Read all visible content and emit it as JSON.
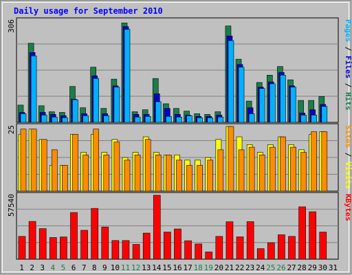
{
  "chart_data": {
    "type": "bar",
    "title": "Daily usage for September 2010",
    "categories": [
      "1",
      "2",
      "3",
      "4",
      "5",
      "6",
      "7",
      "8",
      "9",
      "10",
      "11",
      "12",
      "13",
      "14",
      "15",
      "16",
      "17",
      "18",
      "19",
      "20",
      "21",
      "22",
      "23",
      "24",
      "25",
      "26",
      "27",
      "28",
      "29",
      "30",
      "31"
    ],
    "weekend_days": [
      4,
      5,
      11,
      12,
      18,
      19,
      25,
      26
    ],
    "colors": {
      "frame": "#0000ff",
      "title": "#0000ff",
      "weekday_label": "#000000",
      "weekend_label": "#1a7e4a",
      "pages": "#1a7e4a",
      "files": "#0000cc",
      "hits": "#00b0ff",
      "visits": "#ffff00",
      "sites": "#ff8c00",
      "kbytes": "#ff0000"
    },
    "panels": [
      {
        "id": "hits",
        "ymax_label": "306",
        "ylim": [
          0,
          306
        ],
        "legend": [
          {
            "text": "Pages",
            "color": "#00b0ff"
          },
          {
            "text": " / ",
            "color": "#000000"
          },
          {
            "text": "Files",
            "color": "#0000cc"
          },
          {
            "text": " / ",
            "color": "#000000"
          },
          {
            "text": "Hits",
            "color": "#1a7e4a"
          }
        ],
        "series": [
          {
            "name": "Hits",
            "color": "#1a7e4a",
            "values": [
              52,
              238,
              50,
              32,
              30,
              108,
              44,
              166,
              42,
              130,
              299,
              32,
              38,
              132,
              56,
              42,
              34,
              26,
              24,
              32,
              290,
              190,
              64,
              120,
              142,
              168,
              128,
              66,
              66,
              78,
              0
            ]
          },
          {
            "name": "Files",
            "color": "#0000cc",
            "values": [
              30,
              210,
              30,
              24,
              20,
              70,
              26,
              140,
              26,
              110,
              288,
              24,
              24,
              86,
              42,
              24,
              22,
              18,
              18,
              22,
              260,
              174,
              44,
              106,
              122,
              150,
              110,
              28,
              38,
              54,
              0
            ]
          },
          {
            "name": "Pages",
            "color": "#00b0ff",
            "values": [
              26,
              200,
              22,
              16,
              14,
              68,
              20,
              132,
              20,
              106,
              280,
              16,
              18,
              62,
              18,
              16,
              20,
              14,
              14,
              16,
              246,
              166,
              26,
              102,
              116,
              142,
              106,
              22,
              22,
              48,
              0
            ]
          }
        ]
      },
      {
        "id": "visits",
        "ymax_label": "25",
        "ylim": [
          0,
          25
        ],
        "legend": [
          {
            "text": "Sites",
            "color": "#ff8c00"
          },
          {
            "text": " / ",
            "color": "#000000"
          },
          {
            "text": "Visits",
            "color": "#ffff00"
          }
        ],
        "series": [
          {
            "name": "Visits",
            "color": "#ffff00",
            "values": [
              22,
              24,
              20,
              10,
              10,
              22,
              15,
              22,
              15,
              20,
              13,
              15,
              21,
              15,
              14,
              14,
              12,
              12,
              13,
              20,
              25,
              21,
              18,
              15,
              18,
              21,
              18,
              16,
              22,
              23,
              0
            ]
          },
          {
            "name": "Sites",
            "color": "#ff8c00",
            "values": [
              24,
              24,
              20,
              16,
              10,
              22,
              14,
              24,
              14,
              19,
              12,
              14,
              20,
              14,
              14,
              12,
              10,
              10,
              12,
              16,
              25,
              16,
              17,
              14,
              17,
              21,
              17,
              15,
              23,
              23,
              0
            ]
          }
        ]
      },
      {
        "id": "kbytes",
        "ymax_label": "57540",
        "ylim": [
          0,
          57540
        ],
        "legend": [
          {
            "text": "KBytes",
            "color": "#ff0000"
          }
        ],
        "series": [
          {
            "name": "KBytes",
            "color": "#ff0000",
            "values": [
              20500,
              34000,
              27500,
              19500,
              20000,
              42000,
              26000,
              45700,
              29000,
              16800,
              16800,
              13300,
              23500,
              57540,
              24400,
              27200,
              16600,
              13700,
              6500,
              20500,
              33700,
              20100,
              33800,
              9500,
              14800,
              22000,
              20500,
              47100,
              42700,
              24400,
              0
            ]
          }
        ]
      }
    ]
  }
}
